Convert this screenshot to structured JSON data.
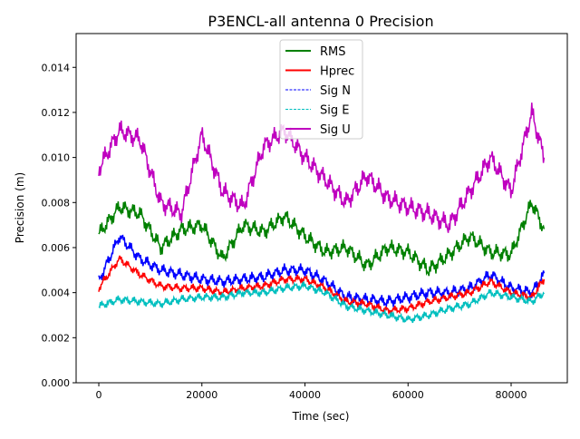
{
  "chart_data": {
    "type": "line",
    "title": "P3ENCL-all antenna 0 Precision",
    "xlabel": "Time (sec)",
    "ylabel": "Precision (m)",
    "xlim": [
      -4400,
      90900
    ],
    "ylim": [
      0,
      0.0155
    ],
    "xticks": [
      0,
      20000,
      40000,
      60000,
      80000
    ],
    "xtick_labels": [
      "0",
      "20000",
      "40000",
      "60000",
      "80000"
    ],
    "yticks": [
      0,
      0.002,
      0.004,
      0.006,
      0.008,
      0.01,
      0.012,
      0.014
    ],
    "ytick_labels": [
      "0.000",
      "0.002",
      "0.004",
      "0.006",
      "0.008",
      "0.010",
      "0.012",
      "0.014"
    ],
    "legend_position": "top-center",
    "x": [
      0,
      4000,
      8000,
      12000,
      16000,
      20000,
      24000,
      28000,
      32000,
      36000,
      40000,
      44000,
      48000,
      52000,
      56000,
      60000,
      64000,
      68000,
      72000,
      76000,
      80000,
      84000,
      86400
    ],
    "series": [
      {
        "name": "RMS",
        "color": "#008000",
        "style": "solid",
        "values": [
          0.0066,
          0.0078,
          0.0075,
          0.006,
          0.0068,
          0.007,
          0.0055,
          0.007,
          0.0067,
          0.0074,
          0.0065,
          0.0058,
          0.006,
          0.0052,
          0.006,
          0.0058,
          0.005,
          0.0057,
          0.0065,
          0.0058,
          0.0057,
          0.008,
          0.0068
        ]
      },
      {
        "name": "Hprec",
        "color": "#ff0000",
        "style": "solid",
        "values": [
          0.0042,
          0.0055,
          0.0048,
          0.0043,
          0.0042,
          0.0042,
          0.004,
          0.0042,
          0.0043,
          0.0046,
          0.0046,
          0.0042,
          0.0036,
          0.0035,
          0.0032,
          0.0033,
          0.0036,
          0.0038,
          0.004,
          0.0045,
          0.004,
          0.0038,
          0.0046
        ]
      },
      {
        "name": "Sig N",
        "color": "#0000ff",
        "style": "dashed",
        "values": [
          0.0045,
          0.0065,
          0.0055,
          0.005,
          0.0048,
          0.0046,
          0.0045,
          0.0046,
          0.0047,
          0.005,
          0.005,
          0.0045,
          0.0038,
          0.0037,
          0.0036,
          0.0038,
          0.004,
          0.004,
          0.0042,
          0.0048,
          0.0042,
          0.004,
          0.0048
        ]
      },
      {
        "name": "Sig E",
        "color": "#00bfbf",
        "style": "dashed",
        "values": [
          0.0034,
          0.0037,
          0.0036,
          0.0035,
          0.0037,
          0.0038,
          0.0038,
          0.004,
          0.004,
          0.0042,
          0.0043,
          0.004,
          0.0034,
          0.0032,
          0.003,
          0.0028,
          0.003,
          0.0033,
          0.0035,
          0.004,
          0.0038,
          0.0036,
          0.004
        ]
      },
      {
        "name": "Sig U",
        "color": "#bf00bf",
        "style": "solid",
        "values": [
          0.0095,
          0.0112,
          0.0108,
          0.008,
          0.0075,
          0.011,
          0.0085,
          0.0078,
          0.0105,
          0.0112,
          0.01,
          0.009,
          0.008,
          0.0092,
          0.0082,
          0.0078,
          0.0075,
          0.007,
          0.0085,
          0.01,
          0.0085,
          0.012,
          0.01
        ]
      }
    ]
  }
}
